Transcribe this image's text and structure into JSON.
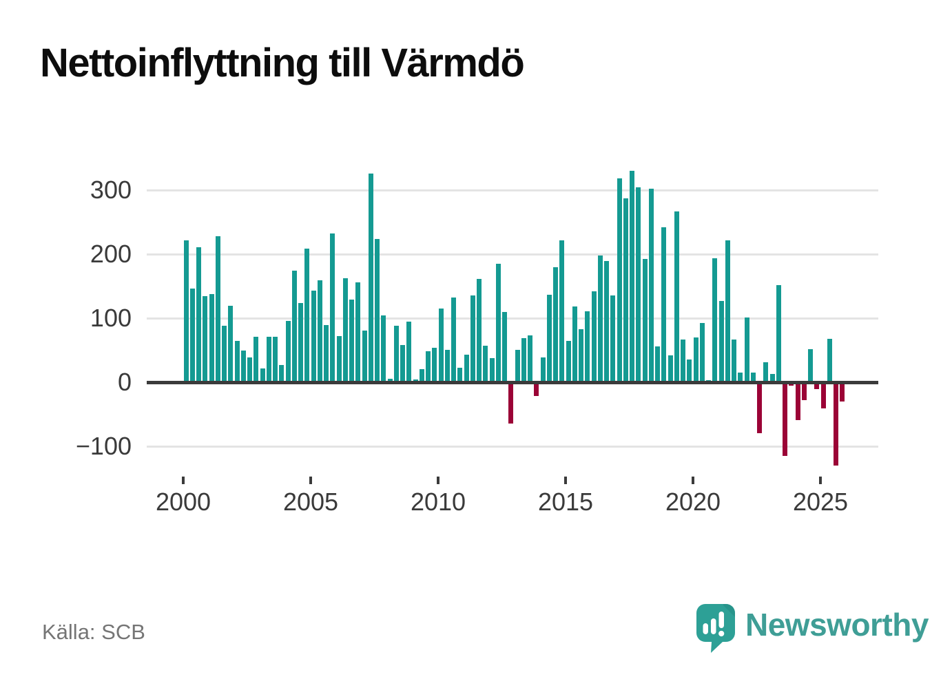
{
  "title": "Nettoinflyttning till Värmdö",
  "source": "Källa: SCB",
  "branding": {
    "logo_text": "Newsworthy",
    "logo_icon": "speech-bubble-bar-chart-icon"
  },
  "colors": {
    "positive_bar": "#149a92",
    "negative_bar": "#9b0336",
    "grid": "#e4e4e4",
    "axis_line": "#3b3b3b",
    "tick_text": "#3a3a3a",
    "source_text": "#757575",
    "brand_teal": "#3f9e96",
    "title_text": "#0d0d0d"
  },
  "chart_data": {
    "type": "bar",
    "title": "Nettoinflyttning till Värmdö",
    "xlabel": "",
    "ylabel": "",
    "frequency": "quarterly",
    "start_period": "2000 Q1",
    "end_period": "2025 Q4",
    "x_tick_labels": [
      "2000",
      "2005",
      "2010",
      "2015",
      "2020",
      "2025"
    ],
    "y_tick_values": [
      300,
      200,
      100,
      0,
      -100
    ],
    "y_tick_labels": [
      "300",
      "200",
      "100",
      "0",
      "−100"
    ],
    "ylim": [
      -150,
      355
    ],
    "grid": "horizontal",
    "legend": "none",
    "series": [
      {
        "name": "Nettoinflyttning",
        "values": [
          222,
          146,
          211,
          134,
          138,
          228,
          88,
          119,
          65,
          50,
          39,
          71,
          22,
          71,
          71,
          27,
          96,
          174,
          124,
          209,
          143,
          159,
          89,
          232,
          72,
          162,
          129,
          156,
          81,
          326,
          224,
          104,
          5,
          88,
          58,
          95,
          4,
          20,
          48,
          54,
          115,
          51,
          132,
          23,
          43,
          136,
          161,
          57,
          38,
          185,
          110,
          -65,
          51,
          69,
          73,
          -21,
          39,
          137,
          180,
          222,
          65,
          118,
          83,
          111,
          142,
          198,
          189,
          135,
          318,
          287,
          330,
          304,
          192,
          302,
          56,
          242,
          42,
          267,
          67,
          36,
          70,
          93,
          3,
          194,
          127,
          222,
          67,
          15,
          101,
          15,
          -80,
          31,
          13,
          152,
          -115,
          -5,
          -59,
          -28,
          52,
          -11,
          -41,
          68,
          -130,
          -30
        ]
      }
    ]
  }
}
